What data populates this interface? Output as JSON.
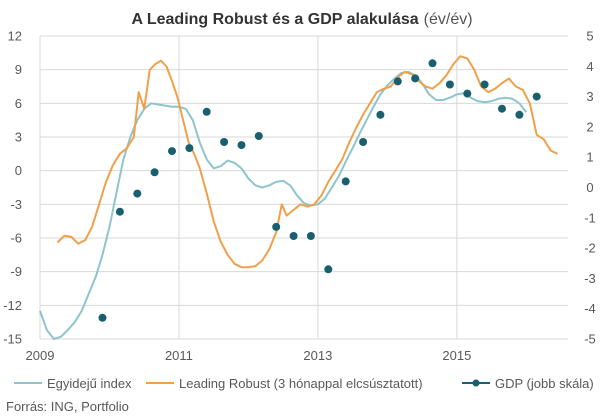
{
  "chart_data": {
    "type": "line",
    "title": {
      "main": "A Leading Robust és a GDP alakulása",
      "unit": "(év/év)"
    },
    "source": "Forrás: ING, Portfolio",
    "grid": true,
    "legend_position": "bottom",
    "x_axis": {
      "range": [
        2009.0,
        2016.6
      ],
      "ticks": [
        2009,
        2011,
        2013,
        2015
      ],
      "tick_labels": [
        "2009",
        "2011",
        "2013",
        "2015"
      ]
    },
    "y_left": {
      "range": [
        -15,
        12
      ],
      "ticks": [
        12,
        9,
        6,
        3,
        0,
        -3,
        -6,
        -9,
        -12,
        -15
      ],
      "tick_labels": [
        "12",
        "9",
        "6",
        "3",
        "0",
        "-3",
        "-6",
        "-9",
        "-12",
        "-15"
      ]
    },
    "y_right": {
      "range": [
        -5,
        5
      ],
      "ticks": [
        5,
        4,
        3,
        2,
        1,
        0,
        -1,
        -2,
        -3,
        -4,
        -5
      ],
      "tick_labels": [
        "5",
        "4",
        "3",
        "2",
        "1",
        "0",
        "-1",
        "-2",
        "-3",
        "-4",
        "-5"
      ]
    },
    "series": [
      {
        "name": "Egyidejű index",
        "axis": "left",
        "style": "line",
        "color": "#8ec5cd",
        "points": [
          [
            2009.0,
            -12.5
          ],
          [
            2009.1,
            -14.2
          ],
          [
            2009.2,
            -15.0
          ],
          [
            2009.3,
            -14.8
          ],
          [
            2009.4,
            -14.2
          ],
          [
            2009.5,
            -13.5
          ],
          [
            2009.6,
            -12.5
          ],
          [
            2009.7,
            -11.0
          ],
          [
            2009.8,
            -9.5
          ],
          [
            2009.9,
            -7.5
          ],
          [
            2010.0,
            -5.0
          ],
          [
            2010.1,
            -2.0
          ],
          [
            2010.2,
            1.0
          ],
          [
            2010.3,
            3.0
          ],
          [
            2010.4,
            4.5
          ],
          [
            2010.5,
            5.5
          ],
          [
            2010.6,
            6.0
          ],
          [
            2010.7,
            5.9
          ],
          [
            2010.8,
            5.8
          ],
          [
            2010.9,
            5.7
          ],
          [
            2011.0,
            5.7
          ],
          [
            2011.1,
            5.5
          ],
          [
            2011.2,
            4.5
          ],
          [
            2011.3,
            2.5
          ],
          [
            2011.4,
            1.0
          ],
          [
            2011.5,
            0.2
          ],
          [
            2011.6,
            0.4
          ],
          [
            2011.7,
            0.9
          ],
          [
            2011.8,
            0.7
          ],
          [
            2011.9,
            0.2
          ],
          [
            2012.0,
            -0.7
          ],
          [
            2012.1,
            -1.3
          ],
          [
            2012.2,
            -1.5
          ],
          [
            2012.3,
            -1.3
          ],
          [
            2012.4,
            -1.0
          ],
          [
            2012.5,
            -0.9
          ],
          [
            2012.6,
            -1.3
          ],
          [
            2012.7,
            -2.2
          ],
          [
            2012.8,
            -2.9
          ],
          [
            2012.9,
            -3.1
          ],
          [
            2013.0,
            -3.0
          ],
          [
            2013.1,
            -2.5
          ],
          [
            2013.2,
            -1.5
          ],
          [
            2013.3,
            -0.5
          ],
          [
            2013.4,
            0.8
          ],
          [
            2013.5,
            2.0
          ],
          [
            2013.6,
            3.3
          ],
          [
            2013.7,
            4.5
          ],
          [
            2013.8,
            5.7
          ],
          [
            2013.9,
            6.8
          ],
          [
            2014.0,
            7.6
          ],
          [
            2014.1,
            8.2
          ],
          [
            2014.2,
            8.7
          ],
          [
            2014.3,
            8.8
          ],
          [
            2014.4,
            8.5
          ],
          [
            2014.5,
            7.8
          ],
          [
            2014.6,
            6.8
          ],
          [
            2014.7,
            6.3
          ],
          [
            2014.8,
            6.3
          ],
          [
            2014.9,
            6.5
          ],
          [
            2015.0,
            6.8
          ],
          [
            2015.1,
            6.9
          ],
          [
            2015.2,
            6.5
          ],
          [
            2015.3,
            6.2
          ],
          [
            2015.4,
            6.1
          ],
          [
            2015.5,
            6.2
          ],
          [
            2015.6,
            6.4
          ],
          [
            2015.7,
            6.5
          ],
          [
            2015.8,
            6.4
          ],
          [
            2015.9,
            6.0
          ],
          [
            2016.0,
            5.2
          ]
        ]
      },
      {
        "name": "Leading Robust (3 hónappal elcsúsztatott)",
        "axis": "left",
        "style": "line",
        "color": "#f0a04b",
        "points": [
          [
            2009.25,
            -6.4
          ],
          [
            2009.35,
            -5.8
          ],
          [
            2009.45,
            -5.9
          ],
          [
            2009.55,
            -6.5
          ],
          [
            2009.65,
            -6.2
          ],
          [
            2009.75,
            -5.0
          ],
          [
            2009.85,
            -3.0
          ],
          [
            2009.95,
            -1.0
          ],
          [
            2010.05,
            0.5
          ],
          [
            2010.15,
            1.5
          ],
          [
            2010.25,
            2.0
          ],
          [
            2010.35,
            3.0
          ],
          [
            2010.42,
            7.0
          ],
          [
            2010.5,
            5.5
          ],
          [
            2010.58,
            9.0
          ],
          [
            2010.66,
            9.5
          ],
          [
            2010.74,
            9.8
          ],
          [
            2010.82,
            9.3
          ],
          [
            2010.9,
            8.0
          ],
          [
            2010.98,
            6.5
          ],
          [
            2011.06,
            4.5
          ],
          [
            2011.14,
            2.5
          ],
          [
            2011.22,
            1.5
          ],
          [
            2011.3,
            0.2
          ],
          [
            2011.4,
            -2.0
          ],
          [
            2011.5,
            -4.5
          ],
          [
            2011.6,
            -6.3
          ],
          [
            2011.7,
            -7.5
          ],
          [
            2011.8,
            -8.3
          ],
          [
            2011.9,
            -8.6
          ],
          [
            2012.0,
            -8.6
          ],
          [
            2012.1,
            -8.5
          ],
          [
            2012.2,
            -8.0
          ],
          [
            2012.3,
            -7.0
          ],
          [
            2012.4,
            -5.5
          ],
          [
            2012.48,
            -3.0
          ],
          [
            2012.55,
            -4.0
          ],
          [
            2012.65,
            -3.5
          ],
          [
            2012.75,
            -3.0
          ],
          [
            2012.85,
            -3.2
          ],
          [
            2012.95,
            -3.0
          ],
          [
            2013.05,
            -2.2
          ],
          [
            2013.15,
            -1.0
          ],
          [
            2013.25,
            0.0
          ],
          [
            2013.35,
            1.0
          ],
          [
            2013.45,
            2.5
          ],
          [
            2013.55,
            3.8
          ],
          [
            2013.65,
            5.0
          ],
          [
            2013.75,
            6.0
          ],
          [
            2013.85,
            7.0
          ],
          [
            2013.95,
            7.3
          ],
          [
            2014.05,
            7.5
          ],
          [
            2014.15,
            8.3
          ],
          [
            2014.25,
            8.8
          ],
          [
            2014.35,
            8.6
          ],
          [
            2014.45,
            8.0
          ],
          [
            2014.55,
            7.5
          ],
          [
            2014.65,
            7.3
          ],
          [
            2014.75,
            7.8
          ],
          [
            2014.85,
            8.5
          ],
          [
            2014.95,
            9.5
          ],
          [
            2015.05,
            10.2
          ],
          [
            2015.15,
            10.0
          ],
          [
            2015.25,
            9.0
          ],
          [
            2015.35,
            7.5
          ],
          [
            2015.45,
            7.0
          ],
          [
            2015.55,
            7.3
          ],
          [
            2015.65,
            7.8
          ],
          [
            2015.75,
            8.2
          ],
          [
            2015.85,
            7.5
          ],
          [
            2015.95,
            7.2
          ],
          [
            2016.05,
            6.0
          ],
          [
            2016.15,
            3.2
          ],
          [
            2016.25,
            2.8
          ],
          [
            2016.35,
            1.8
          ],
          [
            2016.45,
            1.5
          ]
        ]
      },
      {
        "name": "GDP (jobb skála)",
        "axis": "right",
        "style": "markers",
        "color": "#1a5f6e",
        "points": [
          [
            2009.9,
            -4.3
          ],
          [
            2010.15,
            -0.8
          ],
          [
            2010.4,
            -0.2
          ],
          [
            2010.65,
            0.5
          ],
          [
            2010.9,
            1.2
          ],
          [
            2011.15,
            1.3
          ],
          [
            2011.4,
            2.5
          ],
          [
            2011.65,
            1.5
          ],
          [
            2011.9,
            1.4
          ],
          [
            2012.15,
            1.7
          ],
          [
            2012.4,
            -1.3
          ],
          [
            2012.65,
            -1.6
          ],
          [
            2012.9,
            -1.6
          ],
          [
            2013.15,
            -2.7
          ],
          [
            2013.4,
            0.2
          ],
          [
            2013.65,
            1.5
          ],
          [
            2013.9,
            2.4
          ],
          [
            2014.15,
            3.5
          ],
          [
            2014.4,
            3.6
          ],
          [
            2014.65,
            4.1
          ],
          [
            2014.9,
            3.4
          ],
          [
            2015.15,
            3.1
          ],
          [
            2015.4,
            3.4
          ],
          [
            2015.65,
            2.6
          ],
          [
            2015.9,
            2.4
          ],
          [
            2016.15,
            3.0
          ]
        ]
      }
    ]
  }
}
